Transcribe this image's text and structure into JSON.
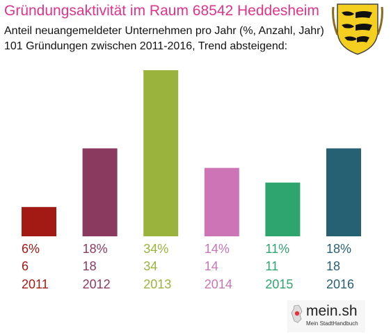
{
  "title": "Gründungsaktivität im Raum 68542 Heddesheim",
  "subtitle_line1": "Anteil neuangemeldeter Unternehmen pro Jahr (%, Anzahl, Jahr)",
  "subtitle_line2": "101 Gründungen zwischen 2011-2016, Trend absteigend:",
  "crest_icon": "baden-wuerttemberg-coat-of-arms-icon",
  "logo": {
    "word": "mein.sh",
    "tagline": "Mein StadtHandbuch",
    "icon": "germany-map-pin-icon"
  },
  "chart_data": {
    "type": "bar",
    "categories": [
      "2011",
      "2012",
      "2013",
      "2014",
      "2015",
      "2016"
    ],
    "values": [
      6,
      18,
      34,
      14,
      11,
      18
    ],
    "percent_labels": [
      "6%",
      "18%",
      "34%",
      "14%",
      "11%",
      "18%"
    ],
    "count_labels": [
      "6",
      "18",
      "34",
      "14",
      "11",
      "18"
    ],
    "colors": [
      "#a31a14",
      "#8a3a5e",
      "#9ab33c",
      "#cc74b5",
      "#2ea46f",
      "#266073"
    ],
    "ylim": [
      0,
      34
    ],
    "grid": false,
    "legend": "none"
  }
}
